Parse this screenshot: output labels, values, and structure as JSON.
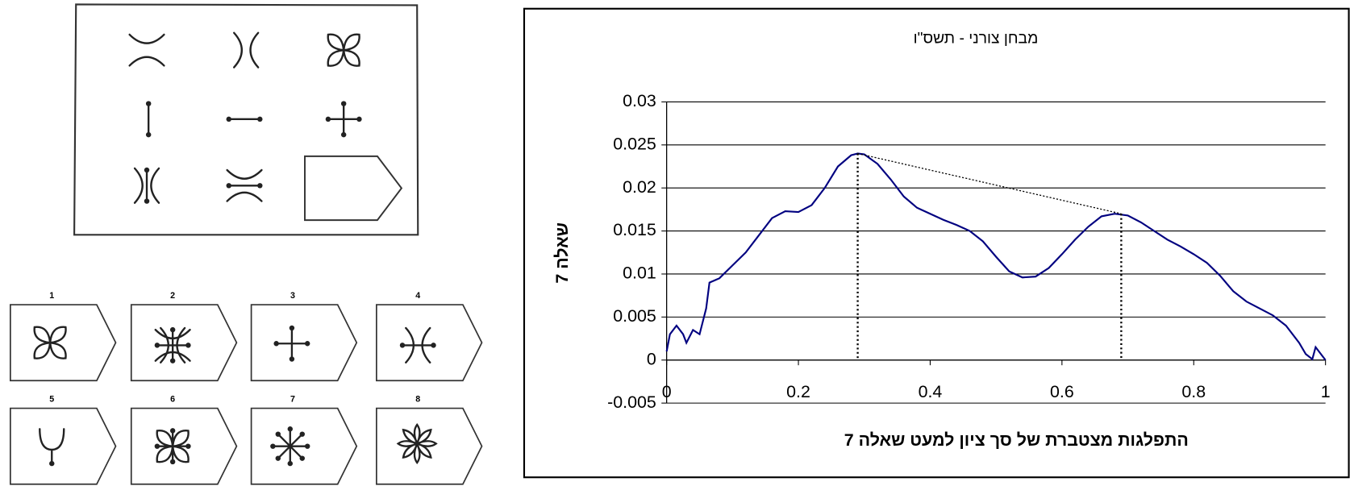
{
  "puzzle": {
    "option_labels": [
      "1",
      "2",
      "3",
      "4",
      "5",
      "6",
      "7",
      "8"
    ]
  },
  "chart_data": {
    "type": "line",
    "title": "מבחן צורני - תשס\"ו",
    "x_label": "התפלגות מצטברת של סך ציון למעט שאלה 7",
    "y_label": "שאלה 7",
    "x": [
      0,
      0.005,
      0.015,
      0.025,
      0.03,
      0.04,
      0.05,
      0.06,
      0.065,
      0.08,
      0.1,
      0.12,
      0.14,
      0.16,
      0.18,
      0.2,
      0.22,
      0.24,
      0.26,
      0.28,
      0.29,
      0.3,
      0.32,
      0.34,
      0.36,
      0.38,
      0.4,
      0.42,
      0.44,
      0.46,
      0.48,
      0.5,
      0.52,
      0.54,
      0.56,
      0.58,
      0.6,
      0.62,
      0.64,
      0.66,
      0.68,
      0.7,
      0.72,
      0.74,
      0.76,
      0.78,
      0.8,
      0.82,
      0.84,
      0.86,
      0.88,
      0.9,
      0.92,
      0.94,
      0.96,
      0.97,
      0.98,
      0.985,
      1
    ],
    "series": [
      {
        "color": "#000080",
        "values": [
          0.001,
          0.003,
          0.004,
          0.003,
          0.002,
          0.0035,
          0.003,
          0.006,
          0.009,
          0.0095,
          0.011,
          0.0125,
          0.0145,
          0.0165,
          0.0173,
          0.0172,
          0.018,
          0.02,
          0.0225,
          0.0238,
          0.024,
          0.0239,
          0.0228,
          0.021,
          0.019,
          0.0177,
          0.017,
          0.0163,
          0.0157,
          0.015,
          0.0138,
          0.012,
          0.0103,
          0.0096,
          0.0097,
          0.0107,
          0.0123,
          0.014,
          0.0155,
          0.0167,
          0.017,
          0.0168,
          0.016,
          0.015,
          0.014,
          0.0132,
          0.0123,
          0.0113,
          0.0098,
          0.008,
          0.0068,
          0.006,
          0.0052,
          0.004,
          0.002,
          0.0007,
          0.0001,
          0.0015,
          0
        ]
      }
    ],
    "markers": [
      {
        "x": 0.29,
        "y": 0.024
      },
      {
        "x": 0.69,
        "y": 0.017
      }
    ],
    "xlim": [
      0,
      1
    ],
    "xticks": [
      0,
      0.2,
      0.4,
      0.6,
      0.8,
      1
    ],
    "ylim": [
      -0.005,
      0.03
    ],
    "yticks": [
      -0.005,
      0,
      0.005,
      0.01,
      0.015,
      0.02,
      0.025,
      0.03
    ],
    "grid": true
  }
}
